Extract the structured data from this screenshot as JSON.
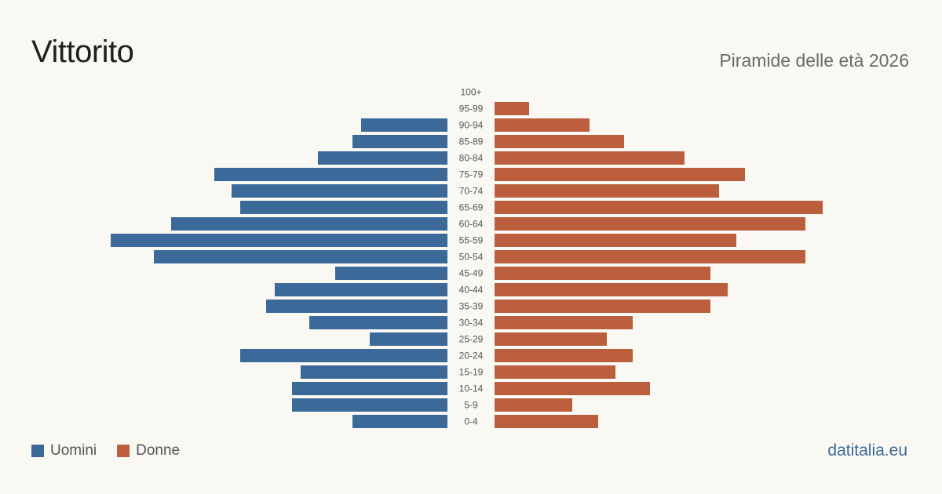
{
  "header": {
    "title": "Vittorito",
    "subtitle": "Piramide delle età 2026"
  },
  "footer": {
    "source": "datitalia.eu"
  },
  "colors": {
    "men": "#3b6a9a",
    "women": "#bb5e3d"
  },
  "chart_data": {
    "type": "bar",
    "orientation": "horizontal-pyramid",
    "categories": [
      "100+",
      "95-99",
      "90-94",
      "85-89",
      "80-84",
      "75-79",
      "70-74",
      "65-69",
      "60-64",
      "55-59",
      "50-54",
      "45-49",
      "40-44",
      "35-39",
      "30-34",
      "25-29",
      "20-24",
      "15-19",
      "10-14",
      "5-9",
      "0-4"
    ],
    "series": [
      {
        "name": "Uomini",
        "values": [
          0,
          0,
          10,
          11,
          15,
          27,
          25,
          24,
          32,
          39,
          34,
          13,
          20,
          21,
          16,
          9,
          24,
          17,
          18,
          18,
          11
        ]
      },
      {
        "name": "Donne",
        "values": [
          0,
          4,
          11,
          15,
          22,
          29,
          26,
          38,
          36,
          28,
          36,
          25,
          27,
          25,
          16,
          13,
          16,
          14,
          18,
          9,
          12
        ]
      }
    ],
    "legend": {
      "position": "bottom-left",
      "entries": [
        "Uomini",
        "Donne"
      ]
    },
    "grid": false
  }
}
